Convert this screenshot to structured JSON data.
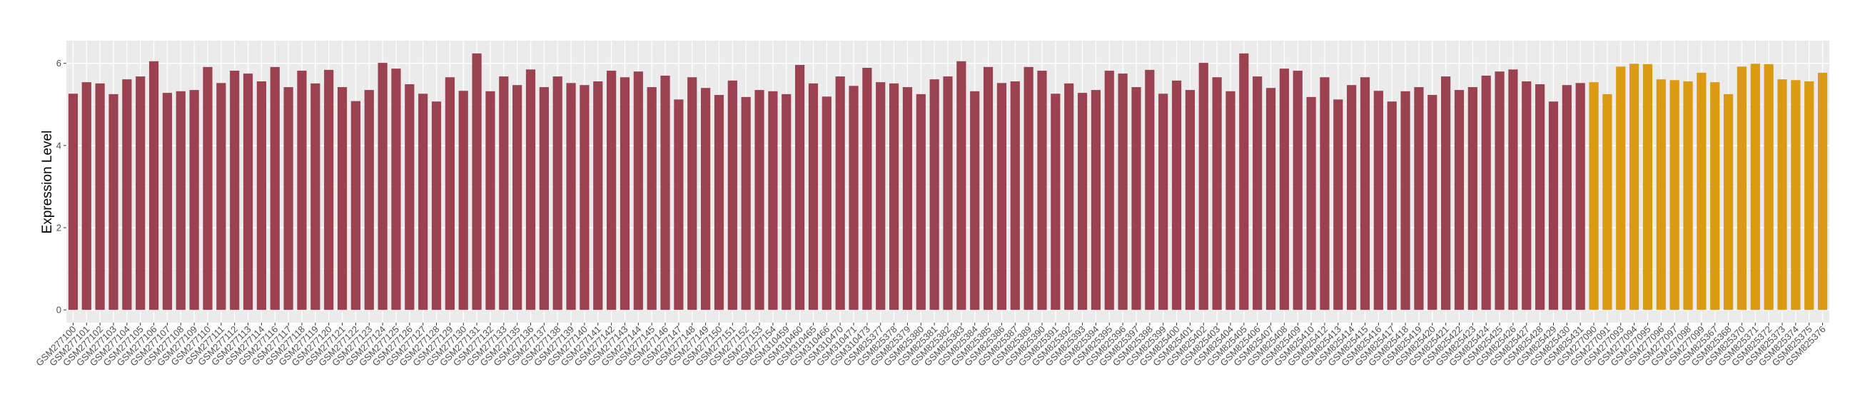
{
  "chart_data": {
    "type": "bar",
    "title": "",
    "xlabel": "",
    "ylabel": "Expression Level",
    "ylim": [
      -0.31,
      6.55
    ],
    "yticks": [
      0,
      2,
      4,
      6
    ],
    "grid": true,
    "legend": "none",
    "colors": {
      "primary": "#9B4150",
      "highlight": "#DC9912",
      "panel": "#EBEBEB"
    },
    "categories": [
      "GSM277100",
      "GSM277101",
      "GSM277102",
      "GSM277103",
      "GSM277104",
      "GSM277105",
      "GSM277106",
      "GSM277107",
      "GSM277108",
      "GSM277109",
      "GSM277110",
      "GSM277111",
      "GSM277112",
      "GSM277113",
      "GSM277114",
      "GSM277116",
      "GSM277117",
      "GSM277118",
      "GSM277119",
      "GSM277120",
      "GSM277121",
      "GSM277122",
      "GSM277123",
      "GSM277124",
      "GSM277125",
      "GSM277126",
      "GSM277127",
      "GSM277128",
      "GSM277129",
      "GSM277130",
      "GSM277131",
      "GSM277132",
      "GSM277133",
      "GSM277135",
      "GSM277136",
      "GSM277137",
      "GSM277138",
      "GSM277139",
      "GSM277140",
      "GSM277141",
      "GSM277142",
      "GSM277143",
      "GSM277144",
      "GSM277145",
      "GSM277146",
      "GSM277147",
      "GSM277148",
      "GSM277149",
      "GSM277150",
      "GSM277151",
      "GSM277152",
      "GSM277153",
      "GSM277154",
      "GSM310459",
      "GSM310460",
      "GSM310465",
      "GSM310466",
      "GSM310470",
      "GSM310471",
      "GSM310473",
      "GSM825377",
      "GSM825378",
      "GSM825379",
      "GSM825380",
      "GSM825381",
      "GSM825382",
      "GSM825383",
      "GSM825384",
      "GSM825385",
      "GSM825386",
      "GSM825387",
      "GSM825389",
      "GSM825390",
      "GSM825391",
      "GSM825392",
      "GSM825393",
      "GSM825394",
      "GSM825395",
      "GSM825396",
      "GSM825397",
      "GSM825398",
      "GSM825399",
      "GSM825400",
      "GSM825401",
      "GSM825402",
      "GSM825403",
      "GSM825404",
      "GSM825405",
      "GSM825406",
      "GSM825407",
      "GSM825408",
      "GSM825409",
      "GSM825410",
      "GSM825412",
      "GSM825413",
      "GSM825414",
      "GSM825415",
      "GSM825416",
      "GSM825417",
      "GSM825418",
      "GSM825419",
      "GSM825420",
      "GSM825421",
      "GSM825422",
      "GSM825423",
      "GSM825424",
      "GSM825425",
      "GSM825426",
      "GSM825427",
      "GSM825428",
      "GSM825429",
      "GSM825430",
      "GSM825431",
      "GSM277090",
      "GSM277091",
      "GSM277093",
      "GSM277094",
      "GSM277095",
      "GSM277096",
      "GSM277097",
      "GSM277098",
      "GSM277099",
      "GSM825367",
      "GSM825368",
      "GSM825370",
      "GSM825371",
      "GSM825372",
      "GSM825373",
      "GSM825374",
      "GSM825375",
      "GSM825376"
    ],
    "values": [
      5.26,
      5.54,
      5.51,
      5.25,
      5.61,
      5.68,
      6.05,
      5.28,
      5.32,
      5.35,
      5.91,
      5.52,
      5.82,
      5.75,
      5.56,
      5.91,
      5.42,
      5.82,
      5.51,
      5.84,
      5.42,
      5.08,
      5.35,
      6.01,
      5.87,
      5.49,
      5.26,
      5.07,
      5.66,
      5.33,
      6.24,
      5.32,
      5.68,
      5.47,
      5.85,
      5.42,
      5.68,
      5.52,
      5.47,
      5.56,
      5.82,
      5.66,
      5.8,
      5.42,
      5.7,
      5.12,
      5.66,
      5.4,
      5.23,
      5.58,
      5.18,
      5.35,
      5.32,
      5.25,
      5.96,
      5.51,
      5.19,
      5.68,
      5.45,
      5.89,
      5.54,
      5.51,
      5.42,
      5.25,
      5.61,
      5.68,
      6.05,
      5.32,
      5.91,
      5.52,
      5.56,
      5.91,
      5.82,
      5.26,
      5.51,
      5.28,
      5.35,
      5.82,
      5.75,
      5.42,
      5.84,
      5.26,
      5.58,
      5.35,
      6.01,
      5.66,
      5.32,
      6.24,
      5.68,
      5.4,
      5.87,
      5.82,
      5.18,
      5.66,
      5.12,
      5.47,
      5.66,
      5.33,
      5.07,
      5.32,
      5.42,
      5.23,
      5.68,
      5.35,
      5.42,
      5.7,
      5.8,
      5.85,
      5.56,
      5.49,
      5.07,
      5.47,
      5.52,
      5.54,
      5.25,
      5.92,
      5.99,
      5.98,
      5.61,
      5.59,
      5.56,
      5.77,
      5.54,
      5.25,
      5.92,
      5.99,
      5.98,
      5.61,
      5.59,
      5.56,
      5.77
    ],
    "highlighted_categories": [
      "GSM277090",
      "GSM277091",
      "GSM277093",
      "GSM277094",
      "GSM277095",
      "GSM277096",
      "GSM277097",
      "GSM277098",
      "GSM277099",
      "GSM825367",
      "GSM825368",
      "GSM825370",
      "GSM825371",
      "GSM825372",
      "GSM825373",
      "GSM825374",
      "GSM825375",
      "GSM825376"
    ]
  }
}
